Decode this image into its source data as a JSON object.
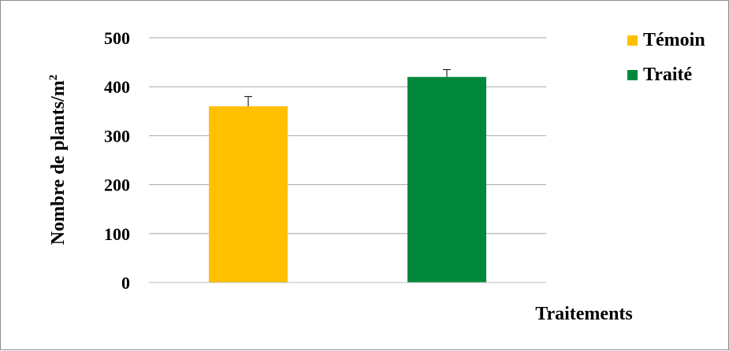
{
  "chart_data": {
    "type": "bar",
    "title": "",
    "ylabel": "Nombre de plants/m",
    "ylabel_superscript": "2",
    "xlabel": "Traitements",
    "ylim": [
      0,
      500
    ],
    "yticks": [
      "0",
      "100",
      "200",
      "300",
      "400",
      "500"
    ],
    "grid": true,
    "legend_position": "top-right",
    "series": [
      {
        "name": "Témoin",
        "value": 360,
        "error": 20,
        "color": "#FFC000"
      },
      {
        "name": "Traité",
        "value": 420,
        "error": 15,
        "color": "#00883A"
      }
    ]
  }
}
